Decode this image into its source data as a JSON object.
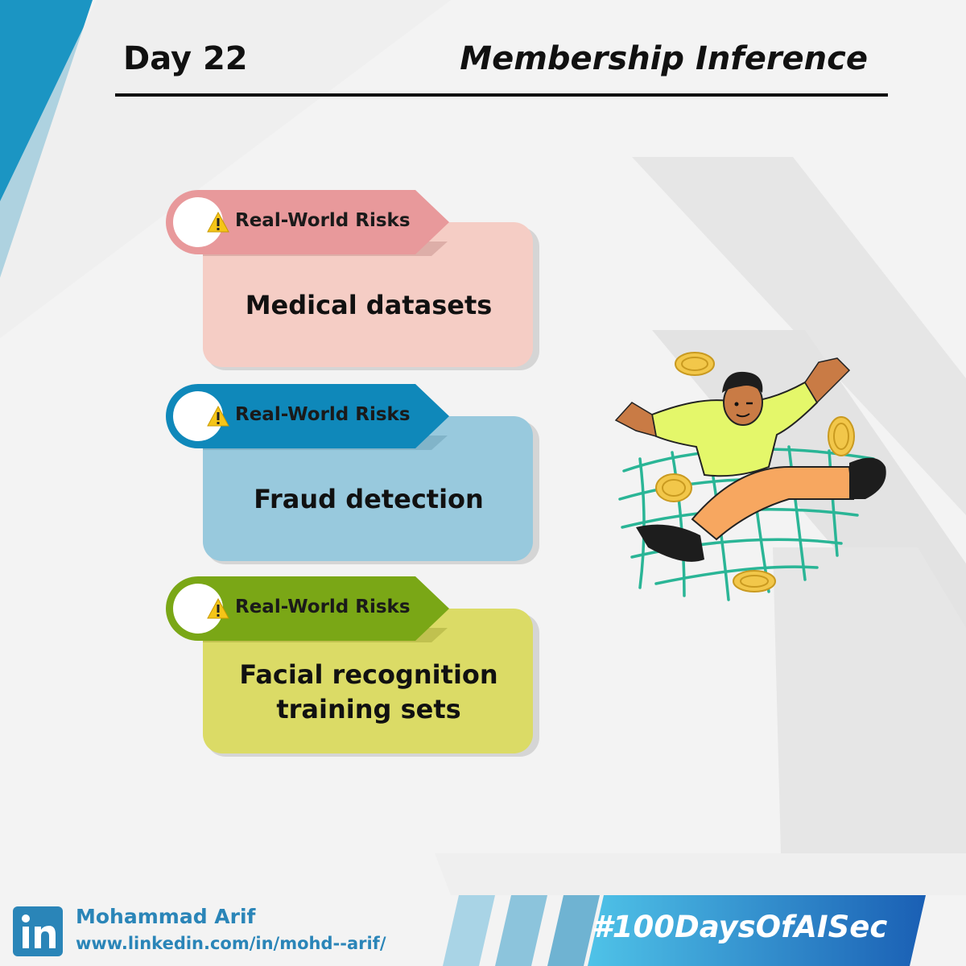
{
  "header": {
    "day": "Day 22",
    "title": "Membership Inference"
  },
  "risks": [
    {
      "badge": "Real-World Risks",
      "icon": "warning-icon",
      "line1": "Medical datasets",
      "line2": "",
      "badge_color": "#e8999b",
      "body_color": "#f5cdc5"
    },
    {
      "badge": "Real-World Risks",
      "icon": "warning-icon",
      "line1": "Fraud detection",
      "line2": "",
      "badge_color": "#0f88ba",
      "body_color": "#98c9dd"
    },
    {
      "badge": "Real-World Risks",
      "icon": "warning-icon",
      "line1": "Facial recognition",
      "line2": "training sets",
      "badge_color": "#7aa716",
      "body_color": "#dbdb66"
    }
  ],
  "footer": {
    "logo": "linkedin-icon",
    "name": "Mohammad Arif",
    "url": "www.linkedin.com/in/mohd--arif/",
    "hashtag": "#100DaysOfAISec",
    "accent_color": "#2a85b8"
  }
}
